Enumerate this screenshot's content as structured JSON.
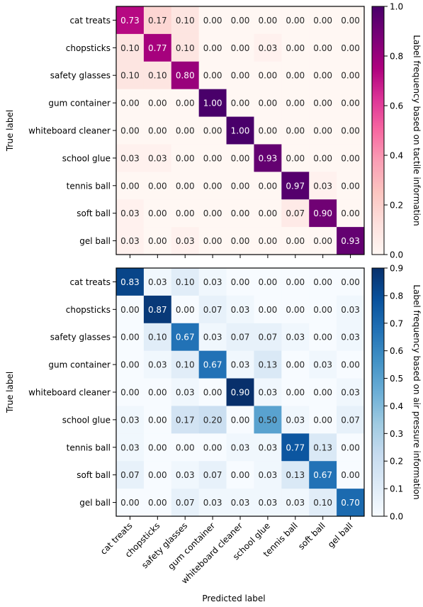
{
  "chart_data": [
    {
      "type": "heatmap",
      "categories": [
        "cat treats",
        "chopsticks",
        "safety glasses",
        "gum container",
        "whiteboard cleaner",
        "school glue",
        "tennis ball",
        "soft ball",
        "gel ball"
      ],
      "values": [
        [
          0.73,
          0.17,
          0.1,
          0.0,
          0.0,
          0.0,
          0.0,
          0.0,
          0.0
        ],
        [
          0.1,
          0.77,
          0.1,
          0.0,
          0.0,
          0.03,
          0.0,
          0.0,
          0.0
        ],
        [
          0.1,
          0.1,
          0.8,
          0.0,
          0.0,
          0.0,
          0.0,
          0.0,
          0.0
        ],
        [
          0.0,
          0.0,
          0.0,
          1.0,
          0.0,
          0.0,
          0.0,
          0.0,
          0.0
        ],
        [
          0.0,
          0.0,
          0.0,
          0.0,
          1.0,
          0.0,
          0.0,
          0.0,
          0.0
        ],
        [
          0.03,
          0.03,
          0.0,
          0.0,
          0.0,
          0.93,
          0.0,
          0.0,
          0.0
        ],
        [
          0.0,
          0.0,
          0.0,
          0.0,
          0.0,
          0.0,
          0.97,
          0.03,
          0.0
        ],
        [
          0.03,
          0.0,
          0.0,
          0.0,
          0.0,
          0.0,
          0.07,
          0.9,
          0.0
        ],
        [
          0.03,
          0.0,
          0.03,
          0.0,
          0.0,
          0.0,
          0.0,
          0.0,
          0.93
        ]
      ],
      "ylabel": "True label",
      "colorbar_label": "Label frequency based on tactile information",
      "colorbar_range": [
        0,
        1.0
      ],
      "colorbar_ticks": [
        "0.0",
        "0.2",
        "0.4",
        "0.6",
        "0.8",
        "1.0"
      ],
      "colormap": [
        "#fff7f3",
        "#fde0dd",
        "#fcc5c0",
        "#fa9fb5",
        "#f768a1",
        "#dd3497",
        "#ae017e",
        "#7a0177",
        "#49006a"
      ]
    },
    {
      "type": "heatmap",
      "categories": [
        "cat treats",
        "chopsticks",
        "safety glasses",
        "gum container",
        "whiteboard cleaner",
        "school glue",
        "tennis ball",
        "soft ball",
        "gel ball"
      ],
      "values": [
        [
          0.83,
          0.03,
          0.1,
          0.03,
          0.0,
          0.0,
          0.0,
          0.0,
          0.0
        ],
        [
          0.0,
          0.87,
          0.0,
          0.07,
          0.03,
          0.0,
          0.0,
          0.0,
          0.03
        ],
        [
          0.0,
          0.1,
          0.67,
          0.03,
          0.07,
          0.07,
          0.03,
          0.0,
          0.03
        ],
        [
          0.0,
          0.03,
          0.1,
          0.67,
          0.03,
          0.13,
          0.0,
          0.03,
          0.0
        ],
        [
          0.0,
          0.0,
          0.03,
          0.0,
          0.9,
          0.03,
          0.0,
          0.0,
          0.03
        ],
        [
          0.03,
          0.0,
          0.17,
          0.2,
          0.0,
          0.5,
          0.03,
          0.0,
          0.07
        ],
        [
          0.03,
          0.0,
          0.0,
          0.0,
          0.03,
          0.03,
          0.77,
          0.13,
          0.0
        ],
        [
          0.07,
          0.0,
          0.03,
          0.07,
          0.0,
          0.03,
          0.13,
          0.67,
          0.0
        ],
        [
          0.0,
          0.0,
          0.07,
          0.03,
          0.03,
          0.03,
          0.03,
          0.1,
          0.7
        ]
      ],
      "ylabel": "True label",
      "xlabel": "Predicted label",
      "colorbar_label": "Label frequency based on air pressure information",
      "colorbar_range": [
        0,
        0.9
      ],
      "colorbar_ticks": [
        "0.0",
        "0.1",
        "0.2",
        "0.3",
        "0.4",
        "0.5",
        "0.6",
        "0.7",
        "0.8",
        "0.9"
      ],
      "colormap": [
        "#f7fbff",
        "#deebf7",
        "#c6dbef",
        "#9ecae1",
        "#6baed6",
        "#4292c6",
        "#2171b5",
        "#08519c",
        "#08306b"
      ]
    }
  ]
}
